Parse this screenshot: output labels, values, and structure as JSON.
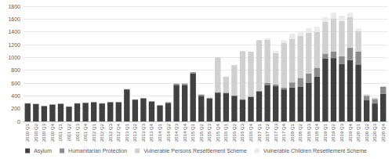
{
  "chart_data": {
    "type": "bar",
    "stacked": true,
    "grid": true,
    "legend": "bottom",
    "categories": [
      "2010 Q1",
      "2010 Q2",
      "2010 Q3",
      "2010 Q4",
      "2011 Q1",
      "2011 Q2",
      "2011 Q3",
      "2011 Q4",
      "2012 Q1",
      "2012 Q2",
      "2012 Q3",
      "2012 Q4",
      "2013 Q1",
      "2013 Q2",
      "2013 Q3",
      "2013 Q4",
      "2014 Q1",
      "2014 Q2",
      "2014 Q3",
      "2014 Q4",
      "2015 Q1",
      "2015 Q2",
      "2015 Q3",
      "2015 Q4",
      "2016 Q1",
      "2016 Q2",
      "2016 Q3",
      "2016 Q4",
      "2017 Q1",
      "2017 Q2",
      "2017 Q3",
      "2017 Q4",
      "2018 Q1",
      "2018 Q2",
      "2018 Q3",
      "2018 Q4",
      "2019 Q1",
      "2019 Q2",
      "2019 Q3",
      "2019 Q4",
      "2020 Q1",
      "2020 Q2",
      "2020 Q3",
      "2020 Q4"
    ],
    "series": [
      {
        "name": "Asylum",
        "color": "#404040",
        "values": [
          280,
          270,
          240,
          260,
          270,
          230,
          280,
          290,
          300,
          280,
          300,
          300,
          500,
          340,
          360,
          310,
          250,
          290,
          570,
          570,
          750,
          400,
          360,
          450,
          440,
          400,
          340,
          380,
          470,
          570,
          550,
          500,
          530,
          540,
          600,
          700,
          980,
          990,
          900,
          960,
          890,
          330,
          280,
          430
        ]
      },
      {
        "name": "Humanitarian Protection",
        "color": "#8c8c8c",
        "values": [
          5,
          5,
          5,
          10,
          10,
          5,
          5,
          5,
          5,
          5,
          5,
          5,
          5,
          5,
          5,
          5,
          5,
          10,
          20,
          20,
          20,
          20,
          10,
          10,
          10,
          10,
          10,
          10,
          10,
          30,
          30,
          30,
          80,
          140,
          150,
          140,
          80,
          100,
          120,
          190,
          200,
          70,
          70,
          110
        ]
      },
      {
        "name": "Vulnerable Persons Resettlement Scheme",
        "color": "#d0d0d0",
        "values": [
          0,
          0,
          0,
          0,
          0,
          0,
          0,
          0,
          0,
          0,
          0,
          0,
          0,
          0,
          0,
          0,
          0,
          0,
          0,
          0,
          0,
          0,
          0,
          540,
          250,
          470,
          750,
          700,
          790,
          680,
          490,
          700,
          680,
          660,
          640,
          560,
          500,
          520,
          550,
          480,
          320,
          20,
          20,
          10
        ]
      },
      {
        "name": "Vulnerable Children Resettlement Scheme",
        "color": "#ebebeb",
        "values": [
          0,
          0,
          0,
          0,
          0,
          0,
          0,
          0,
          0,
          0,
          0,
          0,
          0,
          0,
          0,
          0,
          0,
          0,
          0,
          0,
          0,
          0,
          0,
          0,
          0,
          0,
          0,
          0,
          0,
          20,
          30,
          40,
          80,
          70,
          70,
          80,
          70,
          90,
          80,
          70,
          40,
          0,
          0,
          0
        ]
      }
    ],
    "ylim": [
      0,
      1800
    ],
    "yticks": [
      0,
      200,
      400,
      600,
      800,
      1000,
      1200,
      1400,
      1600,
      1800
    ]
  }
}
